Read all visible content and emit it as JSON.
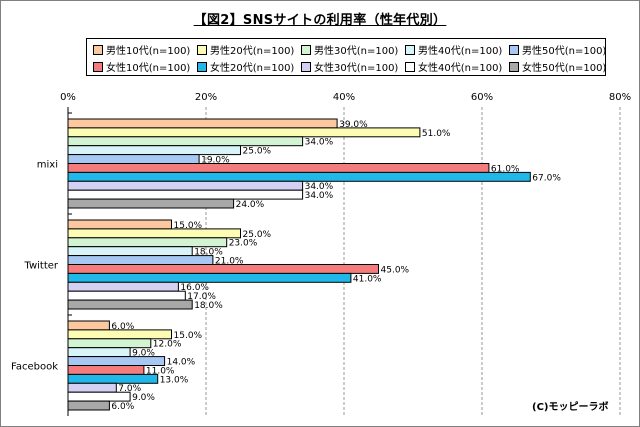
{
  "chart_data": {
    "type": "bar",
    "orientation": "horizontal",
    "title": "【図2】SNSサイトの利用率（性年代別）",
    "categories": [
      "mixi",
      "Twitter",
      "Facebook"
    ],
    "x_ticks": [
      "0%",
      "20%",
      "40%",
      "60%",
      "80%"
    ],
    "xlim": [
      0,
      80
    ],
    "grid": true,
    "legend_position": "top",
    "series": [
      {
        "name": "男性10代(n=100)",
        "color": "#fbc8a0",
        "values": [
          39,
          15,
          6
        ]
      },
      {
        "name": "男性20代(n=100)",
        "color": "#fcfcb4",
        "values": [
          51,
          25,
          15
        ]
      },
      {
        "name": "男性30代(n=100)",
        "color": "#d2f4d2",
        "values": [
          34,
          23,
          12
        ]
      },
      {
        "name": "男性40代(n=100)",
        "color": "#d8f4f8",
        "values": [
          25,
          18,
          9
        ]
      },
      {
        "name": "男性50代(n=100)",
        "color": "#a8c8f4",
        "values": [
          19,
          21,
          14
        ]
      },
      {
        "name": "女性10代(n=100)",
        "color": "#f47c7c",
        "values": [
          61,
          45,
          11
        ]
      },
      {
        "name": "女性20代(n=100)",
        "color": "#20b8e8",
        "values": [
          67,
          41,
          13
        ]
      },
      {
        "name": "女性30代(n=100)",
        "color": "#d4d0f4",
        "values": [
          34,
          16,
          7
        ]
      },
      {
        "name": "女性40代(n=100)",
        "color": "#ffffff",
        "values": [
          34,
          17,
          9
        ]
      },
      {
        "name": "女性50代(n=100)",
        "color": "#a8a8a8",
        "values": [
          24,
          18,
          6
        ]
      }
    ],
    "data_label_suffix": "%"
  },
  "credit": "(C)モッピーラボ"
}
